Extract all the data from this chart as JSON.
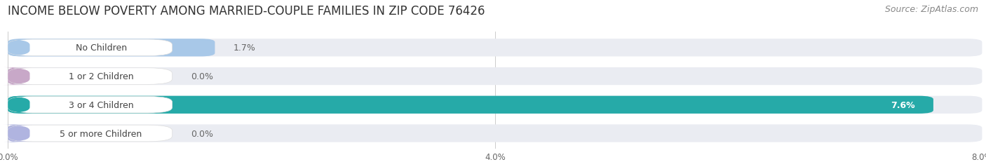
{
  "title": "INCOME BELOW POVERTY AMONG MARRIED-COUPLE FAMILIES IN ZIP CODE 76426",
  "source": "Source: ZipAtlas.com",
  "categories": [
    "No Children",
    "1 or 2 Children",
    "3 or 4 Children",
    "5 or more Children"
  ],
  "values": [
    1.7,
    0.0,
    7.6,
    0.0
  ],
  "bar_colors": [
    "#a8c8e8",
    "#c8a8c8",
    "#26aaa8",
    "#b0b4e0"
  ],
  "xlim": [
    0,
    8.0
  ],
  "xticks": [
    0.0,
    4.0,
    8.0
  ],
  "xticklabels": [
    "0.0%",
    "4.0%",
    "8.0%"
  ],
  "background_color": "#ffffff",
  "bar_background_color": "#eaecf2",
  "title_fontsize": 12,
  "source_fontsize": 9,
  "label_fontsize": 9,
  "value_fontsize": 9,
  "bar_height": 0.62,
  "value_inside_color": "#ffffff",
  "value_outside_color": "#666666"
}
